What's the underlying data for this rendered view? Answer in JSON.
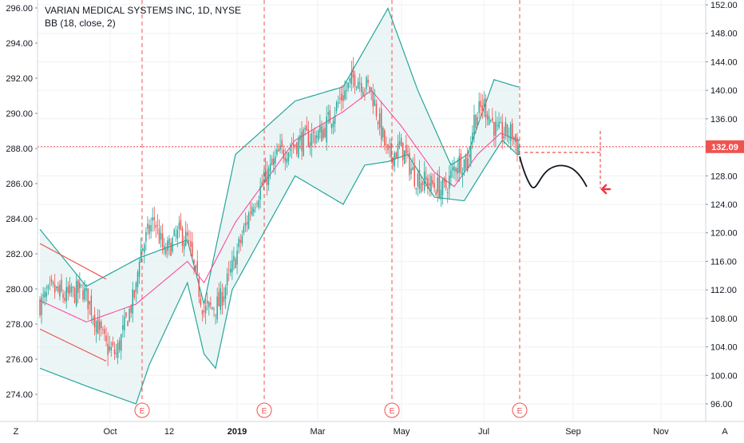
{
  "header": {
    "symbol_title": "VARIAN MEDICAL SYSTEMS INC, 1D, NYSE",
    "indicator": "BB (18, close, 2)"
  },
  "corner": {
    "left": "Z",
    "right": "A"
  },
  "price_tag": "132.09",
  "colors": {
    "up": "#26a69a",
    "down": "#ef5350",
    "band": "#26a69a",
    "band_fill": "#e6f3f2",
    "basis": "#ff3b9a",
    "marker": "#ef5350",
    "grid": "#eef0f3",
    "text": "#131722",
    "arrow": "#f23645"
  },
  "chart_data": {
    "type": "candlestick",
    "title": "VARIAN MEDICAL SYSTEMS INC, 1D, NYSE",
    "left_axis": {
      "ticks": [
        "296.00",
        "294.00",
        "292.00",
        "290.00",
        "288.00",
        "286.00",
        "284.00",
        "282.00",
        "280.00",
        "278.00",
        "276.00",
        "274.00"
      ],
      "range": [
        273.0,
        296.5
      ]
    },
    "right_axis": {
      "ticks": [
        "152.00",
        "148.00",
        "144.00",
        "140.00",
        "136.00",
        "132.00",
        "128.00",
        "124.00",
        "120.00",
        "116.00",
        "112.00",
        "108.00",
        "104.00",
        "100.00",
        "96.00"
      ],
      "range": [
        94.0,
        153.0
      ]
    },
    "x_ticks": [
      "Oct",
      "12",
      "2019",
      "Mar",
      "May",
      "Jul",
      "Sep",
      "Nov"
    ],
    "earnings_markers": [
      "E",
      "E",
      "E",
      "E"
    ],
    "last_price": 132.09,
    "grid": true,
    "indicator": "BB (18, close, 2)",
    "bb_upper_anchors": [
      [
        0,
        120.5
      ],
      [
        28,
        112.5
      ],
      [
        60,
        116.5
      ],
      [
        89,
        119
      ],
      [
        99,
        110
      ],
      [
        118,
        131
      ],
      [
        154,
        138.5
      ],
      [
        183,
        140.5
      ],
      [
        210,
        151.5
      ],
      [
        228,
        140
      ],
      [
        248,
        129.5
      ],
      [
        258,
        131
      ],
      [
        274,
        141.5
      ],
      [
        288,
        140.5
      ]
    ],
    "bb_basis_anchors": [
      [
        0,
        110.5
      ],
      [
        28,
        107.5
      ],
      [
        58,
        110
      ],
      [
        89,
        116
      ],
      [
        99,
        113
      ],
      [
        118,
        121.5
      ],
      [
        154,
        133
      ],
      [
        183,
        137
      ],
      [
        200,
        140
      ],
      [
        218,
        135
      ],
      [
        238,
        128.5
      ],
      [
        250,
        126.5
      ],
      [
        264,
        131
      ],
      [
        278,
        134
      ],
      [
        288,
        133
      ]
    ],
    "bb_lower_anchors": [
      [
        0,
        101
      ],
      [
        28,
        98.5
      ],
      [
        58,
        96
      ],
      [
        66,
        101.5
      ],
      [
        89,
        113
      ],
      [
        99,
        103
      ],
      [
        106,
        101
      ],
      [
        116,
        112
      ],
      [
        154,
        128
      ],
      [
        183,
        124
      ],
      [
        196,
        129.5
      ],
      [
        210,
        130
      ],
      [
        222,
        131
      ],
      [
        238,
        125
      ],
      [
        256,
        124.5
      ],
      [
        268,
        129
      ],
      [
        279,
        133
      ],
      [
        288,
        131
      ]
    ],
    "close_anchors": [
      [
        0,
        110
      ],
      [
        8,
        112
      ],
      [
        15,
        111
      ],
      [
        26,
        112
      ],
      [
        30,
        110
      ],
      [
        40,
        104
      ],
      [
        46,
        103
      ],
      [
        58,
        112
      ],
      [
        60,
        117
      ],
      [
        69,
        122
      ],
      [
        75,
        117
      ],
      [
        84,
        120
      ],
      [
        89,
        119
      ],
      [
        99,
        109
      ],
      [
        108,
        110
      ],
      [
        116,
        115
      ],
      [
        128,
        124
      ],
      [
        144,
        131
      ],
      [
        158,
        133
      ],
      [
        170,
        134
      ],
      [
        182,
        139
      ],
      [
        190,
        142
      ],
      [
        200,
        140
      ],
      [
        210,
        130.5
      ],
      [
        218,
        132
      ],
      [
        226,
        128
      ],
      [
        234,
        127
      ],
      [
        244,
        126
      ],
      [
        252,
        130
      ],
      [
        258,
        130
      ],
      [
        262,
        136
      ],
      [
        268,
        138
      ],
      [
        276,
        134
      ],
      [
        285,
        134
      ],
      [
        288,
        132.1
      ]
    ],
    "wedge_upper": [
      [
        0,
        118.5
      ],
      [
        40,
        113.5
      ]
    ],
    "wedge_lower": [
      [
        0,
        106.5
      ],
      [
        40,
        102
      ]
    ],
    "projection_path": "down then rounded top then down",
    "arrow": "left"
  }
}
